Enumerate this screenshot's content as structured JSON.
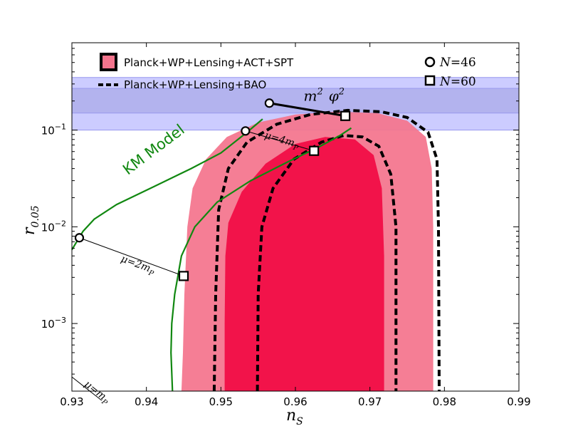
{
  "chart_data": {
    "type": "contour",
    "xlabel_base": "n",
    "xlabel_sub": "S",
    "ylabel_base": "r",
    "ylabel_sub": "0.05",
    "xlim": [
      0.93,
      0.99
    ],
    "ylim": [
      0.0002,
      0.8
    ],
    "yscale": "log",
    "xticks": [
      0.93,
      0.94,
      0.95,
      0.96,
      0.97,
      0.98,
      0.99
    ],
    "xtick_labels": [
      "0.93",
      "0.94",
      "0.95",
      "0.96",
      "0.97",
      "0.98",
      "0.99"
    ],
    "yticks": [
      {
        "value": 0.001,
        "base": "10",
        "exp": "−3"
      },
      {
        "value": 0.01,
        "base": "10",
        "exp": "−2"
      },
      {
        "value": 0.1,
        "base": "10",
        "exp": "−1"
      }
    ],
    "colors": {
      "outer_region": "#f4748d",
      "inner_region": "#f2134a",
      "band_outer": "#ccccff",
      "band_inner": "#b3b3ee",
      "km_model": "#118811",
      "dashed": "#000000"
    },
    "legend": {
      "placement": "top-left",
      "entries": [
        {
          "label": "Planck+WP+Lensing+ACT+SPT",
          "style": "filled-box"
        },
        {
          "label": "Planck+WP+Lensing+BAO",
          "style": "dashed-line"
        }
      ]
    },
    "legend_markers": {
      "placement": "top-right",
      "entries": [
        {
          "marker": "circle",
          "label_var": "N",
          "label_val": "=46"
        },
        {
          "marker": "square",
          "label_var": "N",
          "label_val": "=60"
        }
      ]
    },
    "bands": [
      {
        "name": "outer",
        "y_range": [
          0.1,
          0.35
        ]
      },
      {
        "name": "inner",
        "y_range": [
          0.15,
          0.27
        ]
      }
    ],
    "regions": [
      {
        "name": "outer-68-95",
        "points": [
          [
            0.9447,
            0.0002
          ],
          [
            0.9449,
            0.0005
          ],
          [
            0.9451,
            0.002
          ],
          [
            0.9455,
            0.01
          ],
          [
            0.9462,
            0.025
          ],
          [
            0.948,
            0.05
          ],
          [
            0.9508,
            0.085
          ],
          [
            0.955,
            0.12
          ],
          [
            0.96,
            0.145
          ],
          [
            0.9655,
            0.155
          ],
          [
            0.971,
            0.15
          ],
          [
            0.975,
            0.125
          ],
          [
            0.9775,
            0.085
          ],
          [
            0.9783,
            0.04
          ],
          [
            0.9785,
            0.01
          ],
          [
            0.9785,
            0.001
          ],
          [
            0.9785,
            0.0002
          ]
        ]
      },
      {
        "name": "inner-68",
        "points": [
          [
            0.9505,
            0.0002
          ],
          [
            0.9505,
            0.001
          ],
          [
            0.9506,
            0.005
          ],
          [
            0.951,
            0.011
          ],
          [
            0.9528,
            0.023
          ],
          [
            0.956,
            0.045
          ],
          [
            0.96,
            0.072
          ],
          [
            0.964,
            0.085
          ],
          [
            0.968,
            0.08
          ],
          [
            0.9705,
            0.055
          ],
          [
            0.9716,
            0.025
          ],
          [
            0.9719,
            0.005
          ],
          [
            0.9719,
            0.0002
          ]
        ]
      }
    ],
    "dashed_contours": [
      {
        "name": "bao-outer",
        "points": [
          [
            0.9491,
            0.0002
          ],
          [
            0.9493,
            0.002
          ],
          [
            0.9497,
            0.015
          ],
          [
            0.951,
            0.04
          ],
          [
            0.9535,
            0.075
          ],
          [
            0.9575,
            0.115
          ],
          [
            0.962,
            0.145
          ],
          [
            0.967,
            0.16
          ],
          [
            0.9715,
            0.155
          ],
          [
            0.975,
            0.135
          ],
          [
            0.9778,
            0.095
          ],
          [
            0.979,
            0.05
          ],
          [
            0.9792,
            0.01
          ],
          [
            0.9793,
            0.0002
          ]
        ]
      },
      {
        "name": "bao-inner",
        "points": [
          [
            0.9549,
            0.0002
          ],
          [
            0.955,
            0.002
          ],
          [
            0.9555,
            0.01
          ],
          [
            0.957,
            0.025
          ],
          [
            0.9598,
            0.05
          ],
          [
            0.9635,
            0.075
          ],
          [
            0.9665,
            0.088
          ],
          [
            0.969,
            0.085
          ],
          [
            0.9712,
            0.068
          ],
          [
            0.9728,
            0.035
          ],
          [
            0.9735,
            0.01
          ],
          [
            0.9735,
            0.0002
          ]
        ]
      }
    ],
    "series": [
      {
        "name": "KM Model",
        "points": [
          [
            0.9435,
            0.0002
          ],
          [
            0.9433,
            0.0005
          ],
          [
            0.9434,
            0.001
          ],
          [
            0.9438,
            0.002
          ],
          [
            0.9447,
            0.005
          ],
          [
            0.9465,
            0.01
          ],
          [
            0.9495,
            0.018
          ],
          [
            0.954,
            0.03
          ],
          [
            0.959,
            0.047
          ],
          [
            0.963,
            0.066
          ],
          [
            0.966,
            0.088
          ],
          [
            0.9675,
            0.105
          ]
        ]
      },
      {
        "name": "KM Model",
        "points": [
          [
            0.93,
            0.0058
          ],
          [
            0.9315,
            0.009
          ],
          [
            0.933,
            0.012
          ],
          [
            0.936,
            0.017
          ],
          [
            0.941,
            0.026
          ],
          [
            0.946,
            0.04
          ],
          [
            0.95,
            0.058
          ],
          [
            0.9535,
            0.095
          ],
          [
            0.9556,
            0.13
          ]
        ]
      }
    ],
    "series_label": {
      "text": "KM Model",
      "x": 0.9375,
      "y": 0.034
    },
    "m2phi2_line": {
      "label_base": "m",
      "label_exp1": "2",
      "label_phi": "φ",
      "label_exp2": "2",
      "points": [
        [
          0.9565,
          0.19
        ],
        [
          0.9667,
          0.14
        ]
      ]
    },
    "mu_lines": [
      {
        "label": "μ=m",
        "sub": "P",
        "points": [
          [
            0.93,
            0.00028
          ],
          [
            0.934,
            0.00016
          ]
        ],
        "label_x": 0.9316,
        "label_y": 0.00023
      },
      {
        "label": "μ=2m",
        "sub": "P",
        "points": [
          [
            0.931,
            0.0077
          ],
          [
            0.945,
            0.0031
          ]
        ],
        "label_x": 0.9365,
        "label_y": 0.0044
      },
      {
        "label": "μ=4m",
        "sub": "P",
        "points": [
          [
            0.9533,
            0.098
          ],
          [
            0.9625,
            0.061
          ]
        ],
        "label_x": 0.9558,
        "label_y": 0.083
      }
    ],
    "points_n46": [
      [
        0.931,
        0.0077
      ],
      [
        0.9533,
        0.098
      ],
      [
        0.9565,
        0.19
      ]
    ],
    "points_n60": [
      [
        0.945,
        0.0031
      ],
      [
        0.9625,
        0.061
      ],
      [
        0.9667,
        0.14
      ]
    ]
  }
}
